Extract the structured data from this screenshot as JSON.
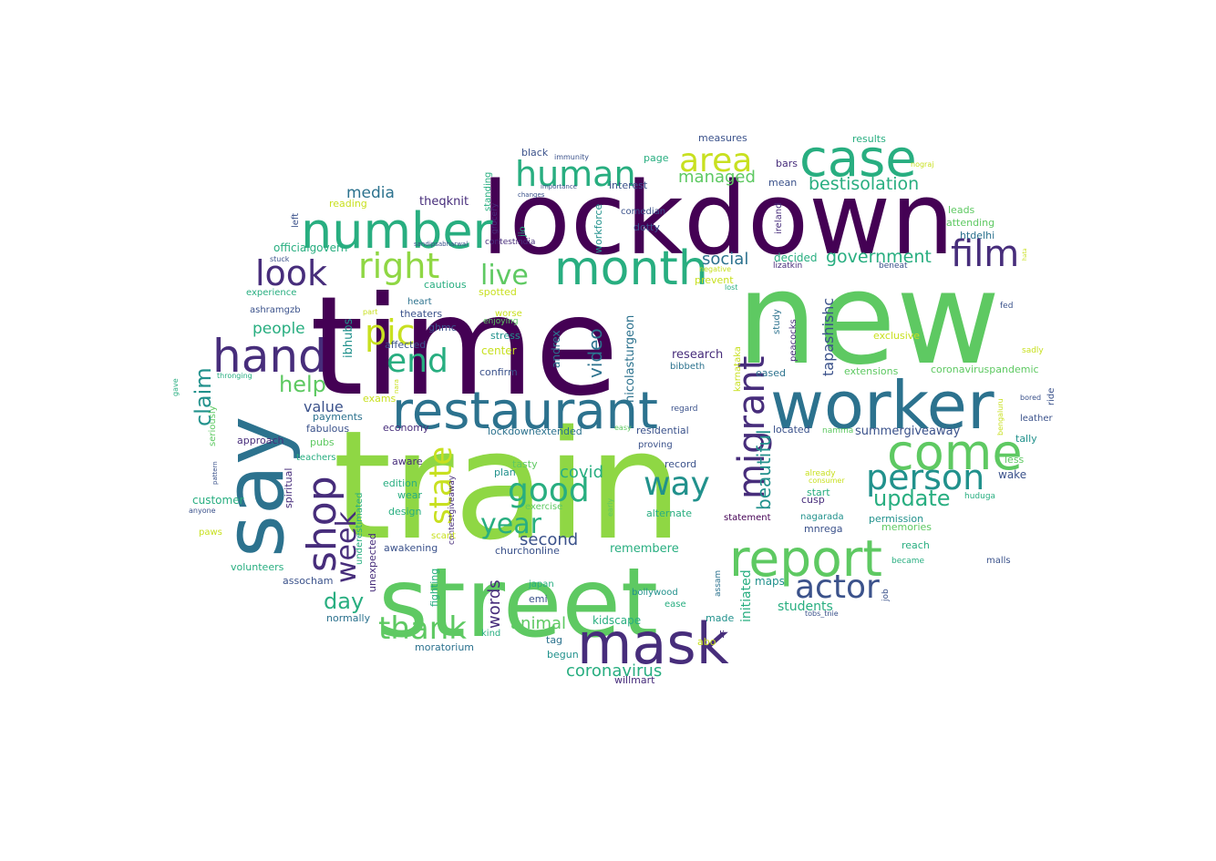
{
  "wordcloud": {
    "colors": {
      "dark_purple": "#440154",
      "indigo": "#472d7b",
      "slate": "#3b528b",
      "steel": "#2c728e",
      "teal": "#21918c",
      "green_teal": "#28ae80",
      "green": "#5ec962",
      "lime": "#8fd744",
      "yellow": "#c8e020",
      "bright_yellow": "#fde725"
    },
    "words": [
      {
        "text": "time"
      },
      {
        "text": "new"
      },
      {
        "text": "train"
      },
      {
        "text": "lockdown"
      },
      {
        "text": "street"
      },
      {
        "text": "say"
      },
      {
        "text": "worker"
      },
      {
        "text": "restaurant"
      },
      {
        "text": "number"
      },
      {
        "text": "case"
      },
      {
        "text": "mask"
      },
      {
        "text": "report"
      },
      {
        "text": "hand"
      },
      {
        "text": "come"
      },
      {
        "text": "month"
      },
      {
        "text": "human"
      },
      {
        "text": "shop"
      },
      {
        "text": "area"
      },
      {
        "text": "person"
      },
      {
        "text": "film"
      },
      {
        "text": "right"
      },
      {
        "text": "look"
      },
      {
        "text": "migrant"
      },
      {
        "text": "actor"
      },
      {
        "text": "pic"
      },
      {
        "text": "end"
      },
      {
        "text": "good"
      },
      {
        "text": "year"
      },
      {
        "text": "way"
      },
      {
        "text": "thank"
      },
      {
        "text": "week"
      },
      {
        "text": "live"
      },
      {
        "text": "state"
      },
      {
        "text": "claim"
      },
      {
        "text": "update"
      },
      {
        "text": "help"
      },
      {
        "text": "day"
      },
      {
        "text": "video"
      },
      {
        "text": "beautiful"
      },
      {
        "text": "government"
      },
      {
        "text": "bestisolation"
      },
      {
        "text": "managed"
      },
      {
        "text": "social"
      },
      {
        "text": "covid"
      },
      {
        "text": "coronavirus"
      },
      {
        "text": "animal"
      },
      {
        "text": "second"
      },
      {
        "text": "words"
      },
      {
        "text": "value"
      },
      {
        "text": "people"
      },
      {
        "text": "media"
      },
      {
        "text": "tapashishc"
      },
      {
        "text": "research"
      },
      {
        "text": "remembere"
      },
      {
        "text": "students"
      },
      {
        "text": "summergiveaway"
      },
      {
        "text": "initiated"
      },
      {
        "text": "nicolasturgeon"
      },
      {
        "text": "andrex"
      },
      {
        "text": "ibhubs"
      },
      {
        "text": "theqknit"
      },
      {
        "text": "officialgovern"
      },
      {
        "text": "decided"
      },
      {
        "text": "customer"
      },
      {
        "text": "wake"
      },
      {
        "text": "maps"
      },
      {
        "text": "kidscape"
      },
      {
        "text": "moratorium"
      },
      {
        "text": "willmart"
      },
      {
        "text": "churchonline"
      },
      {
        "text": "lockdownextended"
      },
      {
        "text": "center"
      },
      {
        "text": "confirm"
      },
      {
        "text": "stress"
      },
      {
        "text": "cautious"
      },
      {
        "text": "spotted"
      },
      {
        "text": "affected"
      },
      {
        "text": "theaters"
      },
      {
        "text": "ghmc"
      },
      {
        "text": "heart"
      },
      {
        "text": "enjoying"
      },
      {
        "text": "worse"
      },
      {
        "text": "fabulous"
      },
      {
        "text": "payments"
      },
      {
        "text": "economy"
      },
      {
        "text": "exams"
      },
      {
        "text": "pubs"
      },
      {
        "text": "approach"
      },
      {
        "text": "teachers"
      },
      {
        "text": "seriously"
      },
      {
        "text": "spiritual"
      },
      {
        "text": "contestgiveaway"
      },
      {
        "text": "aware"
      },
      {
        "text": "edition"
      },
      {
        "text": "wear"
      },
      {
        "text": "design"
      },
      {
        "text": "plan"
      },
      {
        "text": "tasty"
      },
      {
        "text": "exercise"
      },
      {
        "text": "scant"
      },
      {
        "text": "awakening"
      },
      {
        "text": "assocham"
      },
      {
        "text": "volunteers"
      },
      {
        "text": "unexpected"
      },
      {
        "text": "underestimated"
      },
      {
        "text": "normally"
      },
      {
        "text": "fighting"
      },
      {
        "text": "kind"
      },
      {
        "text": "japan"
      },
      {
        "text": "emi"
      },
      {
        "text": "tag"
      },
      {
        "text": "begun"
      },
      {
        "text": "bollywood"
      },
      {
        "text": "ease"
      },
      {
        "text": "made"
      },
      {
        "text": "abo"
      },
      {
        "text": "li"
      },
      {
        "text": "assam"
      },
      {
        "text": "record"
      },
      {
        "text": "statement"
      },
      {
        "text": "alternate"
      },
      {
        "text": "early"
      },
      {
        "text": "proving"
      },
      {
        "text": "residential"
      },
      {
        "text": "easy"
      },
      {
        "text": "regard"
      },
      {
        "text": "bibbeth"
      },
      {
        "text": "karnataka"
      },
      {
        "text": "eased"
      },
      {
        "text": "located"
      },
      {
        "text": "namma"
      },
      {
        "text": "cusp"
      },
      {
        "text": "start"
      },
      {
        "text": "consumer"
      },
      {
        "text": "already"
      },
      {
        "text": "nagarada"
      },
      {
        "text": "mnrega"
      },
      {
        "text": "tobs_tnie"
      },
      {
        "text": "permission"
      },
      {
        "text": "memories"
      },
      {
        "text": "reach"
      },
      {
        "text": "became"
      },
      {
        "text": "job"
      },
      {
        "text": "huduga"
      },
      {
        "text": "malls"
      },
      {
        "text": "less"
      },
      {
        "text": "tally"
      },
      {
        "text": "bengaluru"
      },
      {
        "text": "leather"
      },
      {
        "text": "bored"
      },
      {
        "text": "ride"
      },
      {
        "text": "coronaviruspandemic"
      },
      {
        "text": "extensions"
      },
      {
        "text": "exclusive"
      },
      {
        "text": "sadly"
      },
      {
        "text": "fed"
      },
      {
        "text": "lost"
      },
      {
        "text": "prevent"
      },
      {
        "text": "beneat"
      },
      {
        "text": "negative"
      },
      {
        "text": "lizatkin"
      },
      {
        "text": "study"
      },
      {
        "text": "peacocks"
      },
      {
        "text": "leads"
      },
      {
        "text": "attending"
      },
      {
        "text": "htdelhi"
      },
      {
        "text": "ireland"
      },
      {
        "text": "mean"
      },
      {
        "text": "bars"
      },
      {
        "text": "nograj"
      },
      {
        "text": "results"
      },
      {
        "text": "measures"
      },
      {
        "text": "page"
      },
      {
        "text": "comedian"
      },
      {
        "text": "dotty"
      },
      {
        "text": "interest"
      },
      {
        "text": "workforce"
      },
      {
        "text": "black"
      },
      {
        "text": "immunity"
      },
      {
        "text": "importance"
      },
      {
        "text": "changes"
      },
      {
        "text": "jio"
      },
      {
        "text": "contestindia"
      },
      {
        "text": "grocery"
      },
      {
        "text": "standing"
      },
      {
        "text": "sandipsabharwal"
      },
      {
        "text": "reading"
      },
      {
        "text": "left"
      },
      {
        "text": "stuck"
      },
      {
        "text": "experience"
      },
      {
        "text": "ashramgzb"
      },
      {
        "text": "part"
      },
      {
        "text": "thronging"
      },
      {
        "text": "gave"
      },
      {
        "text": "pattern"
      },
      {
        "text": "anyone"
      },
      {
        "text": "paws"
      },
      {
        "text": "nara"
      },
      {
        "text": "hata"
      }
    ]
  }
}
